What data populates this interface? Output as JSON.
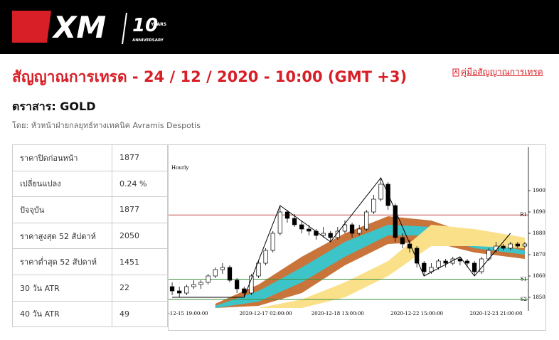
{
  "header": {
    "logo": "XM",
    "badge": "10",
    "badge_top": "YEARS",
    "badge_bottom": "ANNIVERSARY"
  },
  "title": "สัญญาณการเทรด - 24 / 12 / 2020 - 10:00 (GMT +3)",
  "guide_link": "คู่มือสัญญาณการเทรด",
  "instrument": "ตราสาร: GOLD",
  "author": "โดย: หัวหน้าฝ่ายกลยุทธ์ทางเทคนิค Avramis Despotis",
  "table": {
    "rows": [
      [
        "ราคาปิดก่อนหน้า",
        "1877"
      ],
      [
        "เปลี่ยนแปลง",
        "0.24 %"
      ],
      [
        "ปัจจุบัน",
        "1877"
      ],
      [
        "ราคาสูงสุด 52 สัปดาห์",
        "2050"
      ],
      [
        "ราคาต่ำสุด 52 สัปดาห์",
        "1451"
      ],
      [
        "30 วัน ATR",
        "22"
      ],
      [
        "40 วัน ATR",
        "49"
      ]
    ]
  },
  "chart_data": {
    "type": "candlestick",
    "label": "Hourly",
    "categories": [
      null,
      null,
      "0-12-15 19:00:00",
      null,
      null,
      null,
      null,
      null,
      null,
      null,
      null,
      null,
      null,
      "2020-12-17 02:00:00",
      null,
      null,
      null,
      null,
      null,
      null,
      null,
      null,
      null,
      "2020-12-18 13:00:00",
      null,
      null,
      null,
      null,
      null,
      null,
      null,
      null,
      null,
      null,
      "2020-12-22 15:00:00",
      null,
      null,
      null,
      null,
      null,
      null,
      null,
      null,
      null,
      null,
      "2020-12-23 21:00:00",
      null,
      null,
      null,
      null
    ],
    "ohlc": [
      [
        1855,
        1857,
        1851,
        1853
      ],
      [
        1853,
        1855,
        1850,
        1852
      ],
      [
        1852,
        1856,
        1851,
        1855
      ],
      [
        1855,
        1858,
        1854,
        1856
      ],
      [
        1856,
        1858,
        1854,
        1857
      ],
      [
        1857,
        1861,
        1856,
        1860
      ],
      [
        1860,
        1864,
        1859,
        1863
      ],
      [
        1863,
        1866,
        1861,
        1864
      ],
      [
        1864,
        1865,
        1857,
        1858
      ],
      [
        1858,
        1859,
        1852,
        1854
      ],
      [
        1854,
        1855,
        1850,
        1852
      ],
      [
        1852,
        1861,
        1851,
        1860
      ],
      [
        1860,
        1867,
        1859,
        1866
      ],
      [
        1866,
        1873,
        1865,
        1872
      ],
      [
        1872,
        1881,
        1871,
        1880
      ],
      [
        1880,
        1893,
        1879,
        1890
      ],
      [
        1890,
        1891,
        1885,
        1887
      ],
      [
        1887,
        1889,
        1883,
        1884
      ],
      [
        1884,
        1886,
        1880,
        1882
      ],
      [
        1882,
        1884,
        1879,
        1881
      ],
      [
        1881,
        1882,
        1877,
        1879
      ],
      [
        1879,
        1883,
        1878,
        1880
      ],
      [
        1880,
        1881,
        1876,
        1878
      ],
      [
        1878,
        1883,
        1877,
        1881
      ],
      [
        1881,
        1886,
        1880,
        1884
      ],
      [
        1884,
        1885,
        1878,
        1880
      ],
      [
        1880,
        1884,
        1879,
        1882
      ],
      [
        1882,
        1891,
        1881,
        1890
      ],
      [
        1890,
        1898,
        1889,
        1896
      ],
      [
        1896,
        1906,
        1895,
        1903
      ],
      [
        1903,
        1904,
        1891,
        1893
      ],
      [
        1893,
        1894,
        1876,
        1878
      ],
      [
        1878,
        1880,
        1873,
        1875
      ],
      [
        1875,
        1877,
        1871,
        1873
      ],
      [
        1873,
        1874,
        1864,
        1866
      ],
      [
        1866,
        1867,
        1860,
        1862
      ],
      [
        1862,
        1866,
        1861,
        1864
      ],
      [
        1864,
        1868,
        1863,
        1867
      ],
      [
        1867,
        1868,
        1864,
        1866
      ],
      [
        1866,
        1869,
        1865,
        1868
      ],
      [
        1868,
        1869,
        1865,
        1867
      ],
      [
        1867,
        1868,
        1864,
        1866
      ],
      [
        1866,
        1867,
        1860,
        1862
      ],
      [
        1862,
        1869,
        1861,
        1868
      ],
      [
        1868,
        1873,
        1867,
        1872
      ],
      [
        1872,
        1876,
        1871,
        1874
      ],
      [
        1874,
        1875,
        1872,
        1873
      ],
      [
        1873,
        1876,
        1872,
        1875
      ],
      [
        1875,
        1876,
        1873,
        1874
      ],
      [
        1874,
        1876,
        1873,
        1875
      ]
    ],
    "bands": [
      {
        "color": "#c8743a",
        "x": [
          6,
          12,
          18,
          24,
          30,
          36,
          42,
          49
        ],
        "upper": [
          1847,
          1856,
          1869,
          1880,
          1888,
          1886,
          1879,
          1874
        ],
        "lower": [
          1845,
          1846,
          1852,
          1865,
          1875,
          1876,
          1871,
          1868
        ]
      },
      {
        "color": "#3cc4c8",
        "x": [
          6,
          12,
          18,
          24,
          30,
          36,
          42,
          49
        ],
        "upper": [
          1846,
          1853,
          1864,
          1876,
          1884,
          1883,
          1876,
          1872
        ],
        "lower": [
          1845,
          1848,
          1857,
          1869,
          1879,
          1879,
          1873,
          1870
        ]
      },
      {
        "color": "#fbe08a",
        "x": [
          12,
          18,
          24,
          30,
          36,
          42,
          49
        ],
        "upper": [
          1845,
          1849,
          1857,
          1867,
          1884,
          1882,
          1878
        ],
        "lower": [
          1845,
          1845,
          1850,
          1860,
          1874,
          1874,
          1873
        ]
      }
    ],
    "zigzag": {
      "color": "#000000",
      "x": [
        0,
        10,
        15,
        22,
        29,
        35,
        40,
        42,
        47
      ],
      "values": [
        1850,
        1850,
        1893,
        1876,
        1906,
        1860,
        1869,
        1860,
        1880
      ]
    },
    "levels": [
      {
        "name": "R1",
        "value": 1888.6,
        "color": "#c0504d"
      },
      {
        "name": "S1",
        "value": 1858.5,
        "color": "#3a8f3a"
      },
      {
        "name": "S2",
        "value": 1849,
        "color": "#3a8f3a"
      }
    ],
    "ylim": [
      1845,
      1907
    ],
    "yticks": [
      1850,
      1860,
      1870,
      1880,
      1890,
      1900
    ]
  }
}
